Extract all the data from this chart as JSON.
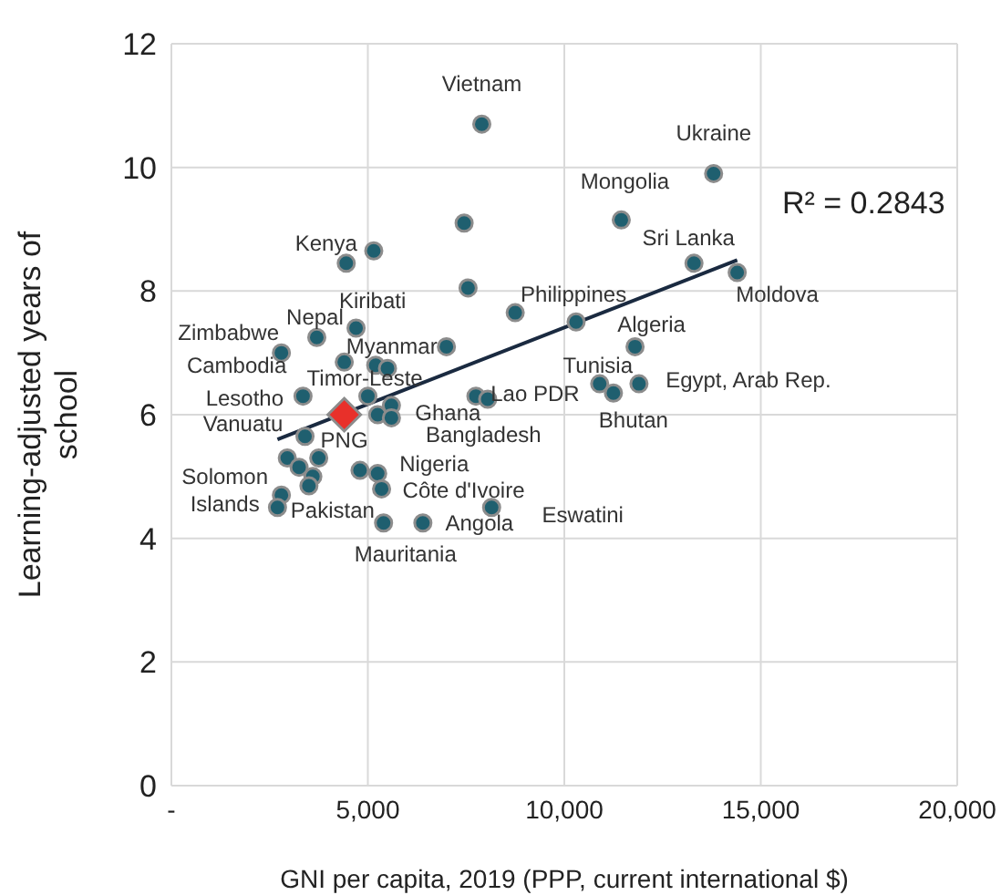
{
  "chart_data": {
    "type": "scatter",
    "xlabel": "GNI per capita, 2019 (PPP, current international $)",
    "ylabel": "Learning-adjusted years of school",
    "xlim": [
      0,
      20000
    ],
    "xticks": [
      {
        "value": 0,
        "label": "-"
      },
      {
        "value": 5000,
        "label": "5,000"
      },
      {
        "value": 10000,
        "label": "10,000"
      },
      {
        "value": 15000,
        "label": "15,000"
      },
      {
        "value": 20000,
        "label": "20,000"
      }
    ],
    "ylim": [
      0,
      12
    ],
    "yticks": [
      0,
      2,
      4,
      6,
      8,
      10,
      12
    ],
    "grid": true,
    "series": [
      {
        "marker": "circle",
        "color": "#1f5f6f",
        "x": [
          7900,
          13800,
          11450,
          7450,
          4450,
          5150,
          13300,
          14400,
          7550,
          8750,
          10300,
          11800,
          4700,
          3700,
          2800,
          7000,
          4400,
          5200,
          5500,
          3350,
          5000,
          5600,
          5250,
          5600,
          7750,
          8050,
          3400,
          2950,
          3250,
          3750,
          3600,
          3500,
          2800,
          2700,
          4800,
          5250,
          5350,
          5400,
          6400,
          8150,
          10900,
          11250,
          11900
        ],
        "values": [
          10.7,
          9.9,
          9.15,
          9.1,
          8.45,
          8.65,
          8.45,
          8.3,
          8.05,
          7.65,
          7.5,
          7.1,
          7.4,
          7.25,
          7.0,
          7.1,
          6.85,
          6.8,
          6.75,
          6.3,
          6.3,
          6.15,
          6.0,
          5.95,
          6.3,
          6.25,
          5.65,
          5.3,
          5.15,
          5.3,
          5.0,
          4.85,
          4.7,
          4.5,
          5.1,
          5.05,
          4.8,
          4.25,
          4.25,
          4.5,
          6.5,
          6.35,
          6.5
        ]
      },
      {
        "marker": "diamond",
        "color": "#e8302a",
        "x": [
          4400
        ],
        "values": [
          6.0
        ]
      },
      {
        "type": "line",
        "marker": "none",
        "color": "#1a2a40",
        "x": [
          2700,
          14400
        ],
        "values": [
          5.6,
          8.5
        ]
      }
    ],
    "annotations": [
      {
        "text": "Vietnam",
        "x": 7900,
        "y": 10.7
      },
      {
        "text": "Ukraine",
        "x": 13800,
        "y": 9.9
      },
      {
        "text": "Mongolia",
        "x": 11450,
        "y": 9.15
      },
      {
        "text": "Kenya",
        "x": 4450,
        "y": 8.45
      },
      {
        "text": "Sri Lanka",
        "x": 13300,
        "y": 8.45
      },
      {
        "text": "Moldova",
        "x": 14400,
        "y": 8.3
      },
      {
        "text": "Philippines",
        "x": 8750,
        "y": 7.65
      },
      {
        "text": "Algeria",
        "x": 11800,
        "y": 7.1
      },
      {
        "text": "Kiribati",
        "x": 4700,
        "y": 7.4
      },
      {
        "text": "Nepal",
        "x": 3700,
        "y": 7.25
      },
      {
        "text": "Zimbabwe",
        "x": 2800,
        "y": 7.0
      },
      {
        "text": "Myanmar",
        "x": 7000,
        "y": 7.1
      },
      {
        "text": "Cambodia",
        "x": 4400,
        "y": 6.85
      },
      {
        "text": "Timor-Leste",
        "x": 5200,
        "y": 6.8
      },
      {
        "text": "Lesotho",
        "x": 3350,
        "y": 6.3
      },
      {
        "text": "Ghana",
        "x": 5600,
        "y": 6.15
      },
      {
        "text": "Bangladesh",
        "x": 5250,
        "y": 6.0
      },
      {
        "text": "PNG",
        "x": 4400,
        "y": 6.0
      },
      {
        "text": "Lao PDR",
        "x": 8050,
        "y": 6.25
      },
      {
        "text": "Vanuatu",
        "x": 3400,
        "y": 5.65
      },
      {
        "text": "Solomon Islands",
        "x": 2800,
        "y": 4.7
      },
      {
        "text": "Pakistan",
        "x": 4800,
        "y": 5.1
      },
      {
        "text": "Nigeria",
        "x": 5250,
        "y": 5.05
      },
      {
        "text": "Côte d'Ivoire",
        "x": 5350,
        "y": 4.8
      },
      {
        "text": "Mauritania",
        "x": 5400,
        "y": 4.25
      },
      {
        "text": "Angola",
        "x": 6400,
        "y": 4.25
      },
      {
        "text": "Eswatini",
        "x": 8150,
        "y": 4.5
      },
      {
        "text": "Tunisia",
        "x": 10900,
        "y": 6.5
      },
      {
        "text": "Egypt, Arab Rep.",
        "x": 11900,
        "y": 6.5
      },
      {
        "text": "Bhutan",
        "x": 11250,
        "y": 6.35
      },
      "R² = 0.2843"
    ]
  }
}
